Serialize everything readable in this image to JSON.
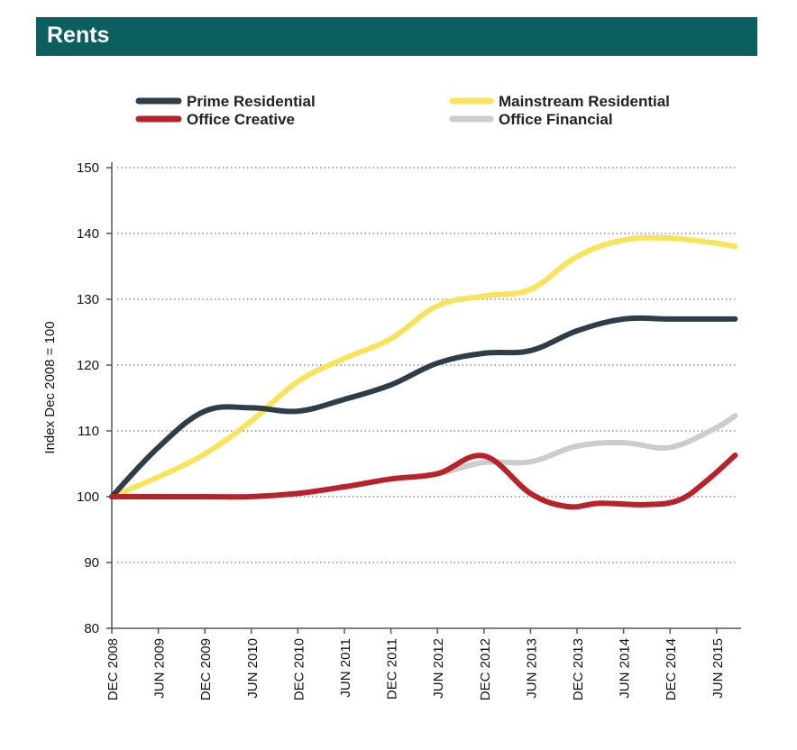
{
  "header": {
    "title": "Rents"
  },
  "colors": {
    "title_bar": "#0c5f5f",
    "prime_residential": "#2d3e4a",
    "mainstream_residential": "#f7e35c",
    "office_creative": "#b8232b",
    "office_financial": "#cccccc"
  },
  "chart_data": {
    "type": "line",
    "title": "",
    "ylabel": "Index Dec 2008 = 100",
    "xlabel": "",
    "ylim": [
      80,
      150
    ],
    "yticks": [
      80,
      90,
      100,
      110,
      120,
      130,
      140,
      150
    ],
    "grid": "dotted horizontal",
    "legend_position": "top",
    "categories": [
      "DEC 2008",
      "JUN 2009",
      "DEC 2009",
      "JUN 2010",
      "DEC 2010",
      "JUN 2011",
      "DEC 2011",
      "JUN 2012",
      "DEC 2012",
      "JUN 2013",
      "DEC 2013",
      "JUN 2014",
      "DEC 2014",
      "JUN 2015"
    ],
    "series": [
      {
        "name": "Office Financial",
        "color": "#cccccc",
        "values": [
          100,
          100,
          100,
          100,
          100.5,
          101.5,
          102.7,
          103.5,
          105.2,
          105.3,
          107.7,
          108.2,
          107.5,
          110.5,
          112.3
        ],
        "x": [
          0,
          1,
          2,
          3,
          4,
          5,
          6,
          7,
          8,
          9,
          10,
          11,
          12,
          13,
          13.4
        ]
      },
      {
        "name": "Mainstream Residential",
        "color": "#f7e35c",
        "values": [
          100,
          103,
          106.5,
          111.5,
          117.5,
          121,
          124,
          129,
          130.5,
          131.5,
          136.5,
          139,
          139.3,
          138.5,
          138
        ],
        "x": [
          0,
          1,
          2,
          3,
          4,
          5,
          6,
          7,
          8,
          9,
          10,
          11,
          12,
          13,
          13.4
        ]
      },
      {
        "name": "Prime Residential",
        "color": "#2d3e4a",
        "values": [
          100,
          107.5,
          113,
          113.5,
          113,
          114.8,
          117,
          120.3,
          121.8,
          122.2,
          125.2,
          127,
          127,
          127,
          127
        ],
        "x": [
          0,
          1,
          2,
          3,
          4,
          5,
          6,
          7,
          8,
          9,
          10,
          11,
          12,
          13,
          13.4
        ]
      },
      {
        "name": "Office Creative",
        "color": "#b8232b",
        "values": [
          100,
          100,
          100,
          100,
          100.5,
          101.5,
          102.7,
          103.5,
          106.2,
          100.5,
          98.5,
          99,
          98.8,
          99.5,
          102.5,
          106.3
        ],
        "x": [
          0,
          1,
          2,
          3,
          4,
          5,
          6,
          7,
          8,
          9,
          9.8,
          10.5,
          11.5,
          12.2,
          12.8,
          13.4
        ]
      }
    ]
  },
  "legend": [
    {
      "name": "Prime Residential",
      "color": "#2d3e4a"
    },
    {
      "name": "Mainstream Residential",
      "color": "#f7e35c"
    },
    {
      "name": "Office Creative",
      "color": "#b8232b"
    },
    {
      "name": "Office Financial",
      "color": "#cccccc"
    }
  ]
}
